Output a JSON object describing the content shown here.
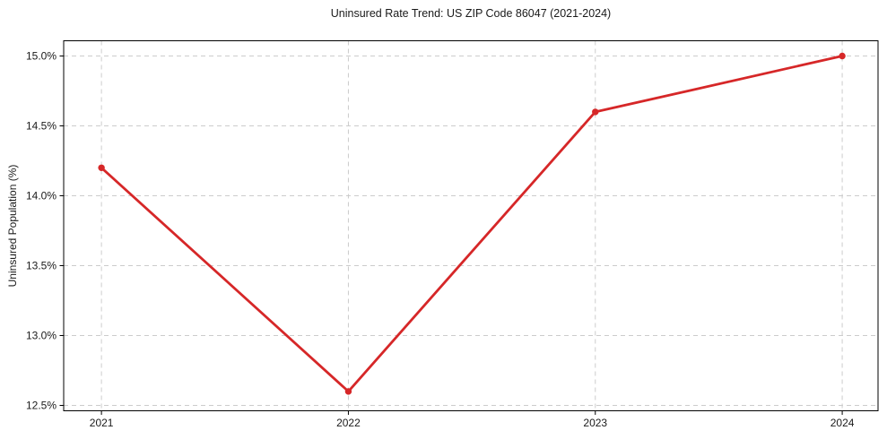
{
  "chart_data": {
    "type": "line",
    "title": "Uninsured Rate Trend: US ZIP Code 86047 (2021-2024)",
    "xlabel": "",
    "ylabel": "Uninsured Population (%)",
    "x": [
      2021,
      2022,
      2023,
      2024
    ],
    "values": [
      14.2,
      12.6,
      14.6,
      15.0
    ],
    "xtick_values": [
      2021,
      2022,
      2023,
      2024
    ],
    "xtick_labels": [
      "2021",
      "2022",
      "2023",
      "2024"
    ],
    "ytick_values": [
      12.5,
      13.0,
      13.5,
      14.0,
      14.5,
      15.0
    ],
    "ytick_labels": [
      "12.5%",
      "13.0%",
      "13.5%",
      "14.0%",
      "14.5%",
      "15.0%"
    ],
    "xlim": [
      2020.847,
      2024.145
    ],
    "ylim": [
      12.4615,
      15.109
    ],
    "grid": true,
    "grid_style": "dashed",
    "legend": false,
    "colors": {
      "line": "#d62728",
      "marker": "#d62728",
      "grid": "#cccccc",
      "spine": "#000000",
      "text": "#1a1a1a",
      "background": "#ffffff"
    }
  }
}
